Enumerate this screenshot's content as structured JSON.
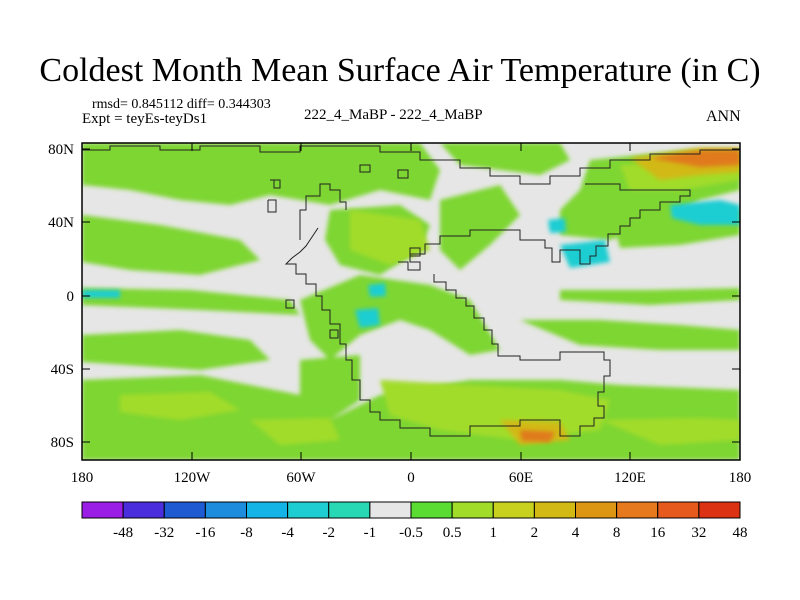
{
  "title": "Coldest Month Mean Surface Air Temperature (in C)",
  "stats_line": "rmsd= 0.845112 diff= 0.344303",
  "experiment_label": "Expt = teyEs-teyDs1",
  "center_label": "222_4_MaBP - 222_4_MaBP",
  "season_label": "ANN",
  "lat_labels": [
    "80N",
    "40N",
    "0",
    "40S",
    "80S"
  ],
  "lon_labels": [
    "180",
    "120W",
    "60W",
    "0",
    "60E",
    "120E",
    "180"
  ],
  "colorbar": {
    "boundary_labels": [
      "-48",
      "-32",
      "-16",
      "-8",
      "-4",
      "-2",
      "-1",
      "-0.5",
      "0.5",
      "1",
      "2",
      "4",
      "8",
      "16",
      "32",
      "48"
    ],
    "colors": [
      "#9b1ee6",
      "#4a2ddc",
      "#1e5ad2",
      "#1e8cdc",
      "#14b4e6",
      "#1ecdd2",
      "#28d7b4",
      "#e6e6e6",
      "#5adc32",
      "#a0dc28",
      "#c8d21e",
      "#d2b914",
      "#dc9614",
      "#e6781e",
      "#e65a1e",
      "#dc3214"
    ]
  }
}
